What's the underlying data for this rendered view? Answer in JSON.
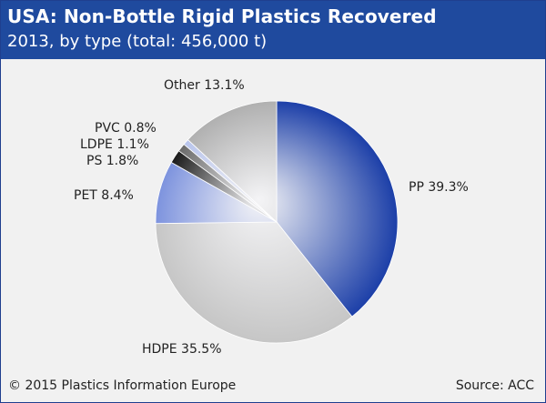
{
  "header": {
    "title": "USA: Non-Bottle Rigid Plastics Recovered",
    "subtitle": "2013, by type (total: 456,000 t)"
  },
  "chart_data": {
    "type": "pie",
    "title": "USA: Non-Bottle Rigid Plastics Recovered",
    "subtitle": "2013, by type (total: 456,000 t)",
    "unit": "%",
    "slices": [
      {
        "name": "PP",
        "value": 39.3,
        "label": "PP 39.3%",
        "color": "#1c3fa8"
      },
      {
        "name": "HDPE",
        "value": 35.5,
        "label": "HDPE 35.5%",
        "color": "#c6c6c6"
      },
      {
        "name": "PET",
        "value": 8.4,
        "label": "PET 8.4%",
        "color": "#7d93de"
      },
      {
        "name": "PS",
        "value": 1.8,
        "label": "PS 1.8%",
        "color": "#1a1a1a"
      },
      {
        "name": "LDPE",
        "value": 1.1,
        "label": "LDPE 1.1%",
        "color": "#6a6a6a"
      },
      {
        "name": "PVC",
        "value": 0.8,
        "label": "PVC 0.8%",
        "color": "#b8c4ec"
      },
      {
        "name": "Other",
        "value": 13.1,
        "label": "Other 13.1%",
        "color": "#b0b0b0"
      }
    ],
    "start_angle_deg": 0,
    "direction": "clockwise",
    "legend": "none"
  },
  "footer": {
    "copyright": "© 2015 Plastics Information Europe",
    "source": "Source: ACC"
  }
}
